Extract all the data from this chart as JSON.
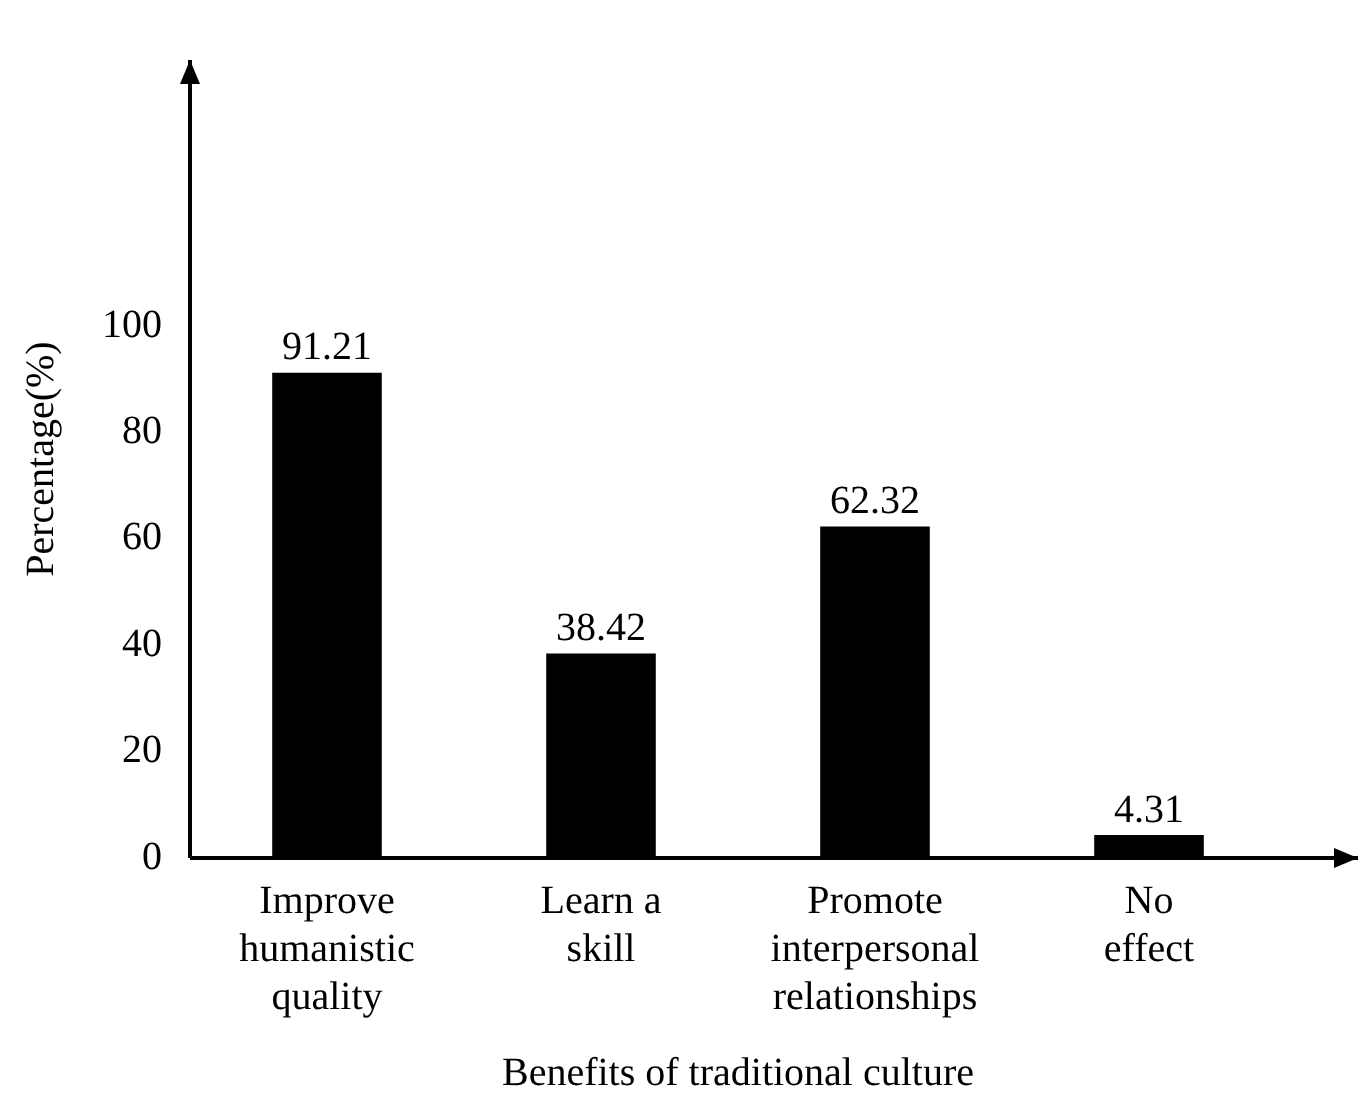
{
  "chart_data": {
    "type": "bar",
    "categories": [
      "Improve humanistic quality",
      "Learn a skill",
      "Promote interpersonal relationships",
      "No effect"
    ],
    "values": [
      91.21,
      38.42,
      62.32,
      4.31
    ],
    "color": "#000000",
    "xlabel": "Benefits of traditional culture",
    "ylabel": "Percentage(%)",
    "ylim": [
      0,
      150
    ],
    "yticks": [
      0,
      20,
      40,
      60,
      80,
      100
    ],
    "data_labels": true,
    "grid": false,
    "legend": false
  }
}
